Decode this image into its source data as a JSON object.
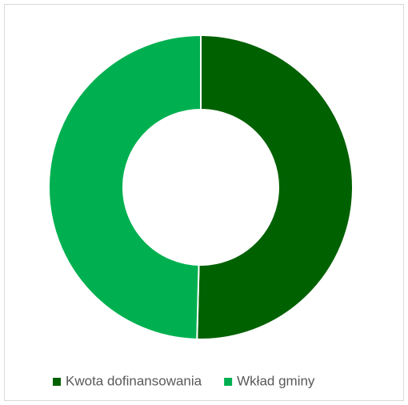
{
  "chart_data": {
    "type": "donut",
    "categories": [
      "Kwota dofinansowania",
      "Wkład gminy"
    ],
    "values": [
      50.4,
      49.6
    ],
    "colors": [
      "#006100",
      "#00b050"
    ],
    "legend": "bottom"
  }
}
